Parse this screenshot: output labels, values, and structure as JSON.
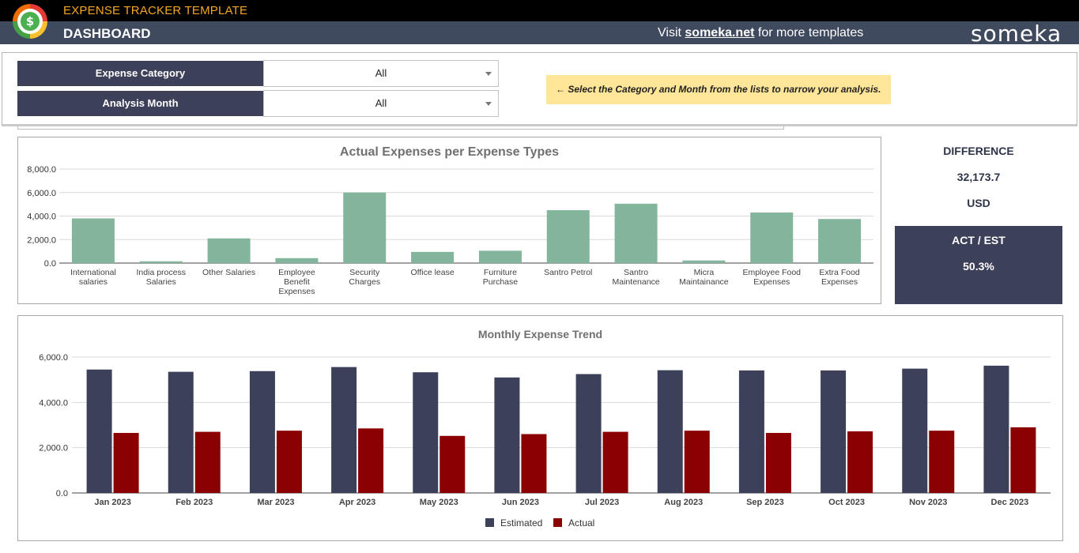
{
  "header": {
    "app_title": "EXPENSE TRACKER TEMPLATE",
    "page_title": "DASHBOARD",
    "visit_prefix": "Visit ",
    "visit_link": "someka.net",
    "visit_suffix": " for more templates",
    "brand": "someka"
  },
  "filters": {
    "category": {
      "label": "Expense Category",
      "value": "All"
    },
    "month": {
      "label": "Analysis Month",
      "value": "All"
    },
    "hint": "← Select the Category and Month from the lists to narrow your analysis."
  },
  "kpi": {
    "difference_label": "DIFFERENCE",
    "difference_value": "32,173.7",
    "currency": "USD",
    "ratio_label": "ACT / EST",
    "ratio_value": "50.3%"
  },
  "colors": {
    "header_dark": "#000000",
    "header_band": "#3f4a5e",
    "navy": "#3d4059",
    "accent_orange": "#f5a623",
    "bar_green": "#82b59b",
    "estimated": "#3d4059",
    "actual": "#8b0000",
    "hint_bg": "#ffe699"
  },
  "chart_data": [
    {
      "type": "bar",
      "title": "Actual Expenses per Expense Types",
      "categories": [
        "International salaries",
        "India process Salaries",
        "Other Salaries",
        "Employee Benefit Expenses",
        "Security Charges",
        "Office lease",
        "Furniture Purchase",
        "Santro Petrol",
        "Santro Maintenance",
        "Micra Maintainance",
        "Employee Food Expenses",
        "Extra Food Expenses"
      ],
      "values": [
        3800,
        150,
        2100,
        420,
        6000,
        950,
        1050,
        4500,
        5050,
        220,
        4300,
        3750
      ],
      "ylim": [
        0,
        8000
      ],
      "yticks": [
        "0.0",
        "2,000.0",
        "4,000.0",
        "6,000.0",
        "8,000.0"
      ],
      "grid": true
    },
    {
      "type": "bar",
      "title": "Monthly Expense Trend",
      "categories": [
        "Jan 2023",
        "Feb 2023",
        "Mar 2023",
        "Apr 2023",
        "May 2023",
        "Jun 2023",
        "Jul 2023",
        "Aug 2023",
        "Sep 2023",
        "Oct 2023",
        "Nov 2023",
        "Dec 2023"
      ],
      "series": [
        {
          "name": "Estimated",
          "values": [
            5450,
            5350,
            5380,
            5560,
            5330,
            5100,
            5250,
            5420,
            5410,
            5410,
            5490,
            5620
          ]
        },
        {
          "name": "Actual",
          "values": [
            2650,
            2700,
            2750,
            2850,
            2520,
            2600,
            2700,
            2750,
            2650,
            2720,
            2750,
            2900
          ]
        }
      ],
      "ylim": [
        0,
        6000
      ],
      "yticks": [
        "0.0",
        "2,000.0",
        "4,000.0",
        "6,000.0"
      ],
      "legend": "bottom",
      "grid": true
    }
  ]
}
